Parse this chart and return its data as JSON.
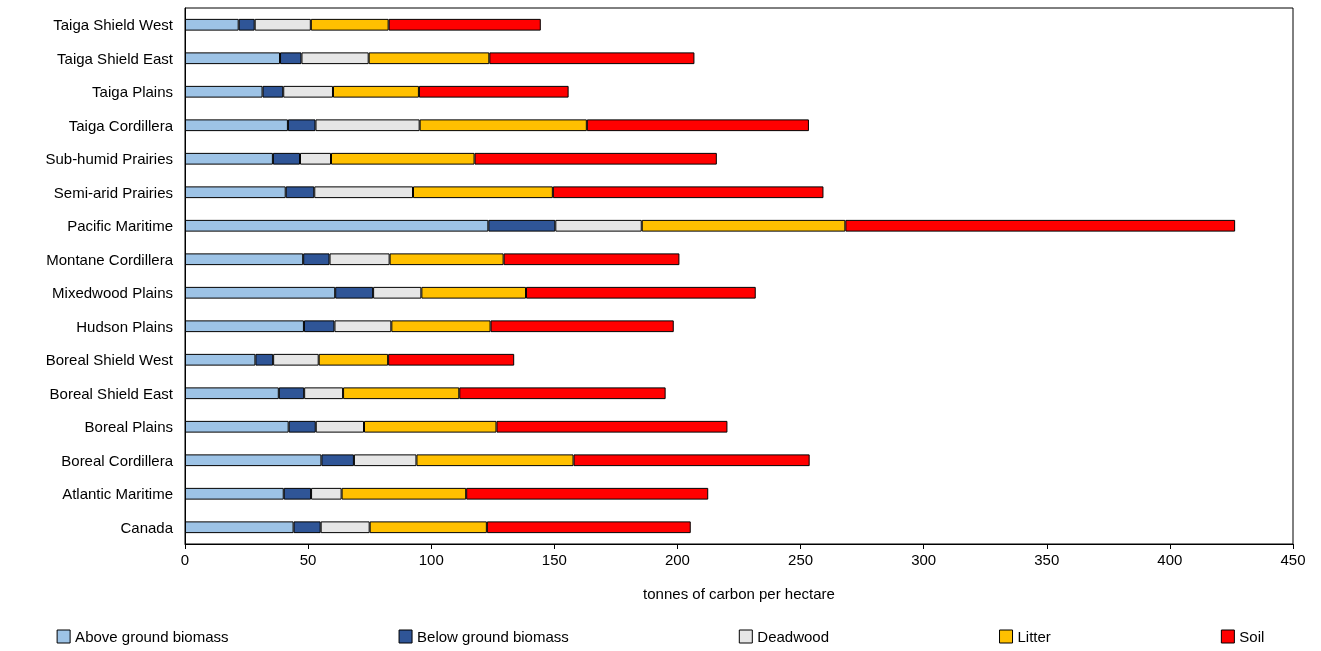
{
  "chart_data": {
    "type": "bar",
    "orientation": "horizontal",
    "stacked": true,
    "categories": [
      "Taiga Shield West",
      "Taiga Shield East",
      "Taiga Plains",
      "Taiga Cordillera",
      "Sub-humid Prairies",
      "Semi-arid Prairies",
      "Pacific Maritime",
      "Montane Cordillera",
      "Mixedwood Plains",
      "Hudson Plains",
      "Boreal Shield West",
      "Boreal Shield East",
      "Boreal Plains",
      "Boreal Cordillera",
      "Atlantic Maritime",
      "Canada"
    ],
    "series": [
      {
        "name": "Above ground biomass",
        "color": "#9dc3e6",
        "values": [
          21.8,
          38.6,
          31.5,
          41.8,
          35.7,
          40.9,
          123.2,
          48.0,
          61.0,
          48.3,
          28.6,
          38.1,
          42.1,
          55.4,
          40.1,
          44.1
        ]
      },
      {
        "name": "Below ground biomass",
        "color": "#2f5597",
        "values": [
          6.5,
          8.7,
          8.4,
          11.2,
          11.0,
          11.6,
          27.2,
          10.7,
          15.4,
          12.4,
          7.2,
          10.3,
          11.0,
          13.2,
          11.1,
          11.0
        ]
      },
      {
        "name": "Deadwood",
        "color": "#e6e6e6",
        "values": [
          22.8,
          27.3,
          20.2,
          42.3,
          12.6,
          40.1,
          35.1,
          24.4,
          19.6,
          23.1,
          18.5,
          15.8,
          19.6,
          25.4,
          12.4,
          19.9
        ]
      },
      {
        "name": "Litter",
        "color": "#ffc000",
        "values": [
          31.6,
          49.0,
          34.9,
          67.9,
          58.3,
          56.8,
          82.7,
          46.3,
          42.5,
          40.3,
          28.2,
          47.2,
          53.8,
          63.8,
          50.6,
          47.6
        ]
      },
      {
        "name": "Soil",
        "color": "#ff0000",
        "values": [
          61.8,
          83.3,
          60.8,
          90.2,
          98.4,
          109.9,
          158.3,
          71.4,
          93.3,
          74.4,
          51.2,
          83.8,
          93.8,
          95.9,
          98.3,
          82.8
        ]
      }
    ],
    "xlabel": "tonnes of carbon per hectare",
    "xlim": [
      0,
      450
    ],
    "xticks": [
      0,
      50,
      100,
      150,
      200,
      250,
      300,
      350,
      400,
      450
    ],
    "grid": false,
    "legend": "bottom"
  }
}
